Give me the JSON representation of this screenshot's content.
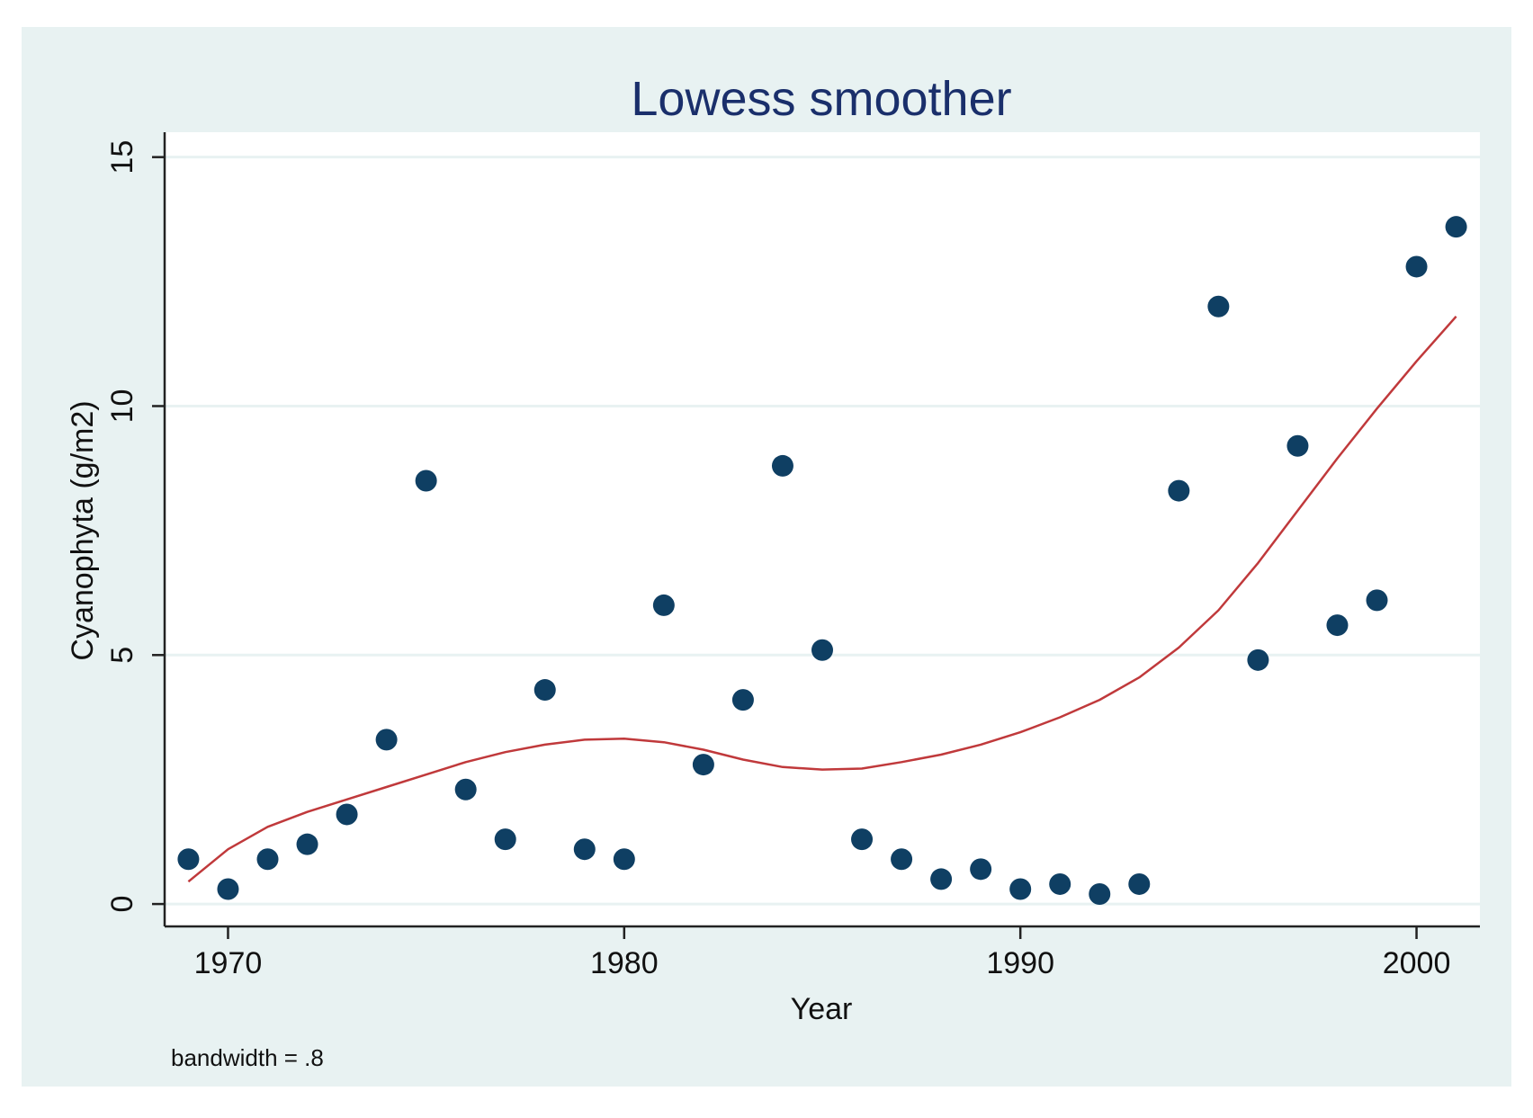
{
  "chart_data": {
    "type": "scatter",
    "title": "Lowess smoother",
    "xlabel": "Year",
    "ylabel": "Cyanophyta (g/m2)",
    "note": "bandwidth = .8",
    "xlim": [
      1968.4,
      2001.6
    ],
    "ylim": [
      -0.45,
      15.5
    ],
    "xticks": [
      1970,
      1980,
      1990,
      2000
    ],
    "yticks": [
      0,
      5,
      10,
      15
    ],
    "grid": true,
    "colors": {
      "background": "#e8f2f2",
      "plot_area": "#ffffff",
      "gridline": "#e8f2f2",
      "points": "#0f3f63",
      "smoother": "#c0393b",
      "title": "#1a2f6b"
    },
    "series": [
      {
        "name": "Cyanophyta (g/m2)",
        "kind": "scatter",
        "x": [
          1969,
          1970,
          1971,
          1972,
          1973,
          1974,
          1975,
          1976,
          1977,
          1978,
          1979,
          1980,
          1981,
          1982,
          1983,
          1984,
          1985,
          1986,
          1987,
          1988,
          1989,
          1990,
          1991,
          1992,
          1993,
          1994,
          1995,
          1996,
          1997,
          1998,
          1999,
          2000,
          2001
        ],
        "y": [
          0.9,
          0.3,
          0.9,
          1.2,
          1.8,
          3.3,
          8.5,
          2.3,
          1.3,
          4.3,
          1.1,
          0.9,
          6.0,
          2.8,
          4.1,
          8.8,
          5.1,
          1.3,
          0.9,
          0.5,
          0.7,
          0.3,
          0.4,
          0.2,
          0.4,
          8.3,
          12.0,
          4.9,
          9.2,
          5.6,
          6.1,
          12.8,
          13.6
        ]
      },
      {
        "name": "Lowess smoother",
        "kind": "line",
        "x": [
          1969,
          1970,
          1971,
          1972,
          1973,
          1974,
          1975,
          1976,
          1977,
          1978,
          1979,
          1980,
          1981,
          1982,
          1983,
          1984,
          1985,
          1986,
          1987,
          1988,
          1989,
          1990,
          1991,
          1992,
          1993,
          1994,
          1995,
          1996,
          1997,
          1998,
          1999,
          2000,
          2001
        ],
        "y": [
          0.45,
          1.1,
          1.55,
          1.85,
          2.1,
          2.35,
          2.6,
          2.85,
          3.05,
          3.2,
          3.3,
          3.32,
          3.25,
          3.1,
          2.9,
          2.75,
          2.7,
          2.72,
          2.85,
          3.0,
          3.2,
          3.45,
          3.75,
          4.1,
          4.55,
          5.15,
          5.9,
          6.85,
          7.9,
          8.95,
          9.95,
          10.9,
          11.8
        ]
      }
    ]
  }
}
